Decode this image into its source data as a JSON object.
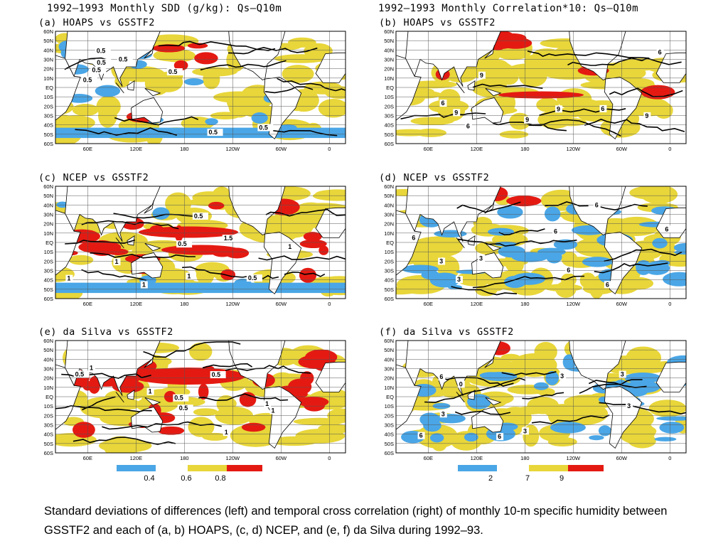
{
  "left_header": "1992—1993 Monthly SDD (g/kg): Qs—Q10m",
  "right_header": "1992—1993 Monthly Correlation*10: Qs—Q10m",
  "lat_labels": [
    "60N",
    "50N",
    "40N",
    "30N",
    "20N",
    "10N",
    "EQ",
    "10S",
    "20S",
    "30S",
    "40S",
    "50S",
    "60S"
  ],
  "lon_labels": [
    "60E",
    "120E",
    "180",
    "120W",
    "60W",
    "0"
  ],
  "colors": {
    "blue": "#4aa6e6",
    "yellow": "#e8d63a",
    "red": "#e41a12",
    "land": "#ffffff",
    "grid": "#555555"
  },
  "panels": [
    {
      "id": "a",
      "title": "(a)  HOAPS  vs  GSSTF2",
      "contour_labels": [
        "0.5",
        "0.5",
        "0.5",
        "0.5",
        "0.5",
        "0.5",
        "0.5",
        "0.5"
      ]
    },
    {
      "id": "b",
      "title": "(b)  HOAPS  vs  GSSTF2",
      "contour_labels": [
        "9",
        "9",
        "9",
        "6",
        "9",
        "6",
        "6",
        "6",
        "9"
      ]
    },
    {
      "id": "c",
      "title": "(c)  NCEP  vs  GSSTF2",
      "contour_labels": [
        "1.5",
        "1",
        "1",
        "1",
        "0.5",
        "1",
        "0.5",
        "0.5",
        "1"
      ]
    },
    {
      "id": "d",
      "title": "(d)  NCEP  vs  GSSTF2",
      "contour_labels": [
        "6",
        "3",
        "6",
        "3",
        "6",
        "6",
        "6",
        "3",
        "6"
      ]
    },
    {
      "id": "e",
      "title": "(e)  da Silva  vs  GSSTF2",
      "contour_labels": [
        "1",
        "1",
        "1",
        "0.5",
        "0.5",
        "1",
        "1",
        "0.5",
        "0.5"
      ]
    },
    {
      "id": "f",
      "title": "(f)  da Silva  vs  GSSTF2",
      "contour_labels": [
        "3",
        "3",
        "6",
        "3",
        "6",
        "3",
        "6",
        "3",
        "0"
      ]
    }
  ],
  "colorbars": {
    "left": {
      "labels": [
        "0.4",
        "0.6",
        "0.8"
      ]
    },
    "right": {
      "labels": [
        "2",
        "7",
        "9"
      ]
    }
  },
  "caption": "Standard deviations of differences (left) and temporal cross correlation (right) of monthly 10-m specific humidity between GSSTF2 and each of (a, b) HOAPS, (c, d) NCEP, and (e, f) da Silva during 1992–93."
}
